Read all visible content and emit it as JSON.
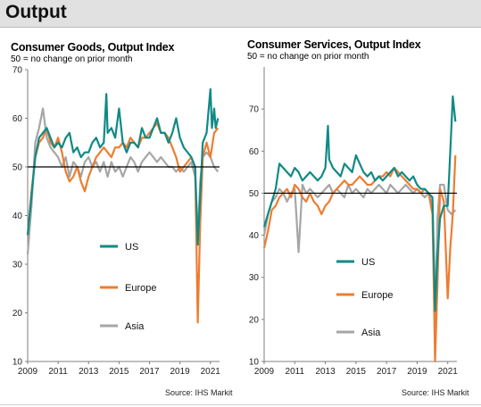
{
  "header": {
    "title": "Output"
  },
  "colors": {
    "US": "#0f8a86",
    "Europe": "#ed7d31",
    "Asia": "#a6a6a6",
    "baseline": "#000000",
    "axis": "#7f7f7f"
  },
  "chart_data": [
    {
      "type": "line",
      "title": "Consumer Goods, Output Index",
      "subtitle": "50 = no change on prior month",
      "source": "Source: IHS Markit",
      "xlim": [
        2009,
        2021.6
      ],
      "ylim": [
        10,
        70
      ],
      "xticks": [
        "2009",
        "2011",
        "2013",
        "2015",
        "2017",
        "2019",
        "2021"
      ],
      "yticks": [
        "10",
        "20",
        "30",
        "40",
        "50",
        "60",
        "70"
      ],
      "baseline": 50,
      "legend_position": "inside-left",
      "series": [
        {
          "name": "US",
          "x": [
            2009.0,
            2009.25,
            2009.5,
            2009.75,
            2010.0,
            2010.25,
            2010.5,
            2010.75,
            2011.0,
            2011.25,
            2011.5,
            2011.75,
            2012.0,
            2012.25,
            2012.5,
            2012.75,
            2013.0,
            2013.25,
            2013.5,
            2013.75,
            2014.0,
            2014.17,
            2014.25,
            2014.5,
            2014.75,
            2015.0,
            2015.25,
            2015.5,
            2015.75,
            2016.0,
            2016.25,
            2016.5,
            2016.75,
            2017.0,
            2017.25,
            2017.5,
            2017.75,
            2018.0,
            2018.25,
            2018.5,
            2018.75,
            2019.0,
            2019.25,
            2019.5,
            2019.75,
            2020.0,
            2020.17,
            2020.33,
            2020.5,
            2020.75,
            2021.0,
            2021.1,
            2021.25,
            2021.35,
            2021.5
          ],
          "y": [
            36,
            44,
            52,
            56,
            57,
            58,
            56,
            54,
            55,
            54,
            56,
            57,
            53,
            54,
            52,
            53,
            53,
            55,
            56,
            54,
            55,
            65,
            57,
            58,
            56,
            62,
            55,
            53,
            55,
            55,
            54,
            58,
            56,
            56,
            58,
            60,
            57,
            57,
            55,
            57,
            60,
            56,
            54,
            53,
            52,
            50,
            34,
            44,
            55,
            57,
            66,
            58,
            62,
            58,
            60
          ]
        },
        {
          "name": "Europe",
          "x": [
            2009.0,
            2009.25,
            2009.5,
            2009.75,
            2010.0,
            2010.25,
            2010.5,
            2010.75,
            2011.0,
            2011.25,
            2011.5,
            2011.75,
            2012.0,
            2012.25,
            2012.5,
            2012.75,
            2013.0,
            2013.25,
            2013.5,
            2013.75,
            2014.0,
            2014.25,
            2014.5,
            2014.75,
            2015.0,
            2015.25,
            2015.5,
            2015.75,
            2016.0,
            2016.25,
            2016.5,
            2016.75,
            2017.0,
            2017.25,
            2017.5,
            2017.75,
            2018.0,
            2018.25,
            2018.5,
            2018.75,
            2019.0,
            2019.25,
            2019.5,
            2019.75,
            2020.0,
            2020.17,
            2020.33,
            2020.5,
            2020.75,
            2021.0,
            2021.25,
            2021.5
          ],
          "y": [
            36,
            45,
            52,
            55,
            56,
            58,
            55,
            54,
            56,
            53,
            49,
            47,
            48,
            50,
            47,
            45,
            48,
            50,
            52,
            53,
            54,
            53,
            52,
            54,
            54,
            55,
            54,
            56,
            55,
            54,
            56,
            56,
            57,
            58,
            59,
            57,
            57,
            56,
            54,
            52,
            49,
            50,
            51,
            52,
            50,
            18,
            38,
            52,
            55,
            52,
            57,
            58
          ]
        },
        {
          "name": "Asia",
          "x": [
            2009.0,
            2009.25,
            2009.5,
            2009.75,
            2010.0,
            2010.25,
            2010.5,
            2010.75,
            2011.0,
            2011.25,
            2011.5,
            2011.75,
            2012.0,
            2012.25,
            2012.5,
            2012.75,
            2013.0,
            2013.25,
            2013.5,
            2013.75,
            2014.0,
            2014.25,
            2014.5,
            2014.75,
            2015.0,
            2015.25,
            2015.5,
            2015.75,
            2016.0,
            2016.25,
            2016.5,
            2016.75,
            2017.0,
            2017.25,
            2017.5,
            2017.75,
            2018.0,
            2018.25,
            2018.5,
            2018.75,
            2019.0,
            2019.25,
            2019.5,
            2019.75,
            2020.0,
            2020.17,
            2020.33,
            2020.5,
            2020.75,
            2021.0,
            2021.25,
            2021.5
          ],
          "y": [
            32,
            42,
            55,
            58,
            62,
            56,
            54,
            53,
            52,
            50,
            52,
            48,
            51,
            50,
            48,
            51,
            52,
            50,
            51,
            49,
            51,
            48,
            51,
            49,
            50,
            48,
            50,
            52,
            51,
            49,
            51,
            52,
            53,
            52,
            51,
            52,
            51,
            50,
            50,
            49,
            50,
            49,
            50,
            51,
            48,
            36,
            47,
            52,
            53,
            52,
            50,
            49
          ]
        }
      ]
    },
    {
      "type": "line",
      "title": "Consumer Services, Output Index",
      "subtitle": "50 = no change on prior month",
      "source": "Source: IHS Markit",
      "xlim": [
        2009,
        2021.6
      ],
      "ylim": [
        10,
        80
      ],
      "xticks": [
        "2009",
        "2011",
        "2013",
        "2015",
        "2017",
        "2019",
        "2021"
      ],
      "yticks": [
        "10",
        "20",
        "30",
        "40",
        "50",
        "60",
        "70"
      ],
      "baseline": 50,
      "legend_position": "inside-left",
      "series": [
        {
          "name": "US",
          "x": [
            2009.0,
            2009.25,
            2009.5,
            2009.75,
            2010.0,
            2010.25,
            2010.5,
            2010.75,
            2011.0,
            2011.25,
            2011.5,
            2011.75,
            2012.0,
            2012.25,
            2012.5,
            2012.75,
            2013.0,
            2013.17,
            2013.25,
            2013.5,
            2013.75,
            2014.0,
            2014.25,
            2014.5,
            2014.75,
            2015.0,
            2015.25,
            2015.5,
            2015.75,
            2016.0,
            2016.25,
            2016.5,
            2016.75,
            2017.0,
            2017.25,
            2017.5,
            2017.75,
            2018.0,
            2018.25,
            2018.5,
            2018.75,
            2019.0,
            2019.25,
            2019.5,
            2019.75,
            2020.0,
            2020.17,
            2020.33,
            2020.5,
            2020.75,
            2021.0,
            2021.17,
            2021.33,
            2021.5
          ],
          "y": [
            42,
            45,
            48,
            51,
            57,
            56,
            55,
            54,
            56,
            55,
            53,
            54,
            55,
            54,
            53,
            54,
            56,
            66,
            58,
            56,
            55,
            54,
            57,
            56,
            55,
            59,
            57,
            55,
            54,
            55,
            53,
            54,
            53,
            54,
            55,
            56,
            54,
            55,
            54,
            53,
            54,
            52,
            51,
            51,
            50,
            49,
            22,
            35,
            44,
            47,
            47,
            60,
            73,
            67
          ]
        },
        {
          "name": "Europe",
          "x": [
            2009.0,
            2009.25,
            2009.5,
            2009.75,
            2010.0,
            2010.25,
            2010.5,
            2010.75,
            2011.0,
            2011.25,
            2011.5,
            2011.75,
            2012.0,
            2012.25,
            2012.5,
            2012.75,
            2013.0,
            2013.25,
            2013.5,
            2013.75,
            2014.0,
            2014.25,
            2014.5,
            2014.75,
            2015.0,
            2015.25,
            2015.5,
            2015.75,
            2016.0,
            2016.25,
            2016.5,
            2016.75,
            2017.0,
            2017.25,
            2017.5,
            2017.75,
            2018.0,
            2018.25,
            2018.5,
            2018.75,
            2019.0,
            2019.25,
            2019.5,
            2019.75,
            2020.0,
            2020.08,
            2020.17,
            2020.33,
            2020.5,
            2020.75,
            2021.0,
            2021.17,
            2021.33,
            2021.5
          ],
          "y": [
            37,
            41,
            46,
            47,
            49,
            50,
            51,
            49,
            52,
            51,
            49,
            48,
            50,
            48,
            47,
            45,
            47,
            48,
            50,
            51,
            52,
            53,
            52,
            52,
            53,
            54,
            53,
            52,
            52,
            53,
            54,
            54,
            55,
            54,
            56,
            55,
            54,
            53,
            52,
            51,
            51,
            50,
            51,
            50,
            45,
            30,
            10,
            28,
            51,
            48,
            25,
            37,
            45,
            59
          ]
        },
        {
          "name": "Asia",
          "x": [
            2009.0,
            2009.25,
            2009.5,
            2009.75,
            2010.0,
            2010.25,
            2010.5,
            2010.75,
            2011.0,
            2011.25,
            2011.5,
            2011.75,
            2012.0,
            2012.25,
            2012.5,
            2012.75,
            2013.0,
            2013.25,
            2013.5,
            2013.75,
            2014.0,
            2014.25,
            2014.5,
            2014.75,
            2015.0,
            2015.25,
            2015.5,
            2015.75,
            2016.0,
            2016.25,
            2016.5,
            2016.75,
            2017.0,
            2017.25,
            2017.5,
            2017.75,
            2018.0,
            2018.25,
            2018.5,
            2018.75,
            2019.0,
            2019.25,
            2019.5,
            2019.75,
            2020.0,
            2020.17,
            2020.33,
            2020.5,
            2020.75,
            2021.0,
            2021.25,
            2021.5
          ],
          "y": [
            40,
            45,
            48,
            49,
            51,
            50,
            48,
            50,
            51,
            36,
            52,
            50,
            51,
            50,
            49,
            50,
            51,
            52,
            50,
            51,
            50,
            49,
            52,
            50,
            51,
            50,
            49,
            51,
            50,
            51,
            52,
            51,
            50,
            52,
            51,
            50,
            51,
            52,
            51,
            50,
            51,
            50,
            49,
            50,
            47,
            20,
            44,
            52,
            52,
            46,
            45,
            46
          ]
        }
      ]
    }
  ]
}
